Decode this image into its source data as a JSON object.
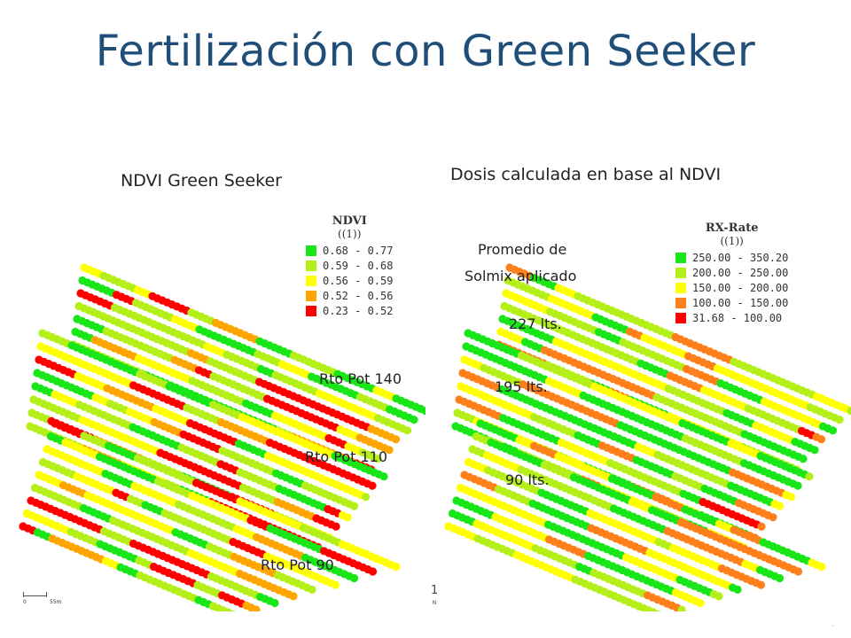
{
  "title": "Fertilización con Green Seeker",
  "left": {
    "caption": "NDVI Green Seeker",
    "legend": {
      "title": "NDVI",
      "subtitle": "((1))",
      "entries": [
        {
          "label": "0.68 - 0.77",
          "color": "#19e619"
        },
        {
          "label": "0.59 - 0.68",
          "color": "#b4ef19"
        },
        {
          "label": "0.56 - 0.59",
          "color": "#ffff00"
        },
        {
          "label": "0.52 - 0.56",
          "color": "#ffa500"
        },
        {
          "label": "0.23 - 0.52",
          "color": "#ff0000"
        }
      ]
    },
    "labels": [
      "Rto Pot 140",
      "Rto Pot 110",
      "Rto Pot 90"
    ],
    "scale": {
      "start": "0",
      "end": "55m"
    }
  },
  "right": {
    "caption": "Dosis calculada en base al NDVI",
    "note_line1": "Promedio de",
    "note_line2": "Solmix aplicado",
    "legend": {
      "title": "RX-Rate",
      "subtitle": "((1))",
      "entries": [
        {
          "label": "250.00 - 350.20",
          "color": "#19e619"
        },
        {
          "label": "200.00 - 250.00",
          "color": "#b4ef19"
        },
        {
          "label": "150.00 - 200.00",
          "color": "#ffff00"
        },
        {
          "label": "100.00 - 150.00",
          "color": "#ff7f1a"
        },
        {
          "label": "31.68 - 100.00",
          "color": "#ff0000"
        }
      ]
    },
    "labels": [
      "227 lts.",
      "195 lts.",
      "90 lts."
    ]
  },
  "north": {
    "numeral": "1",
    "letter": "N"
  }
}
